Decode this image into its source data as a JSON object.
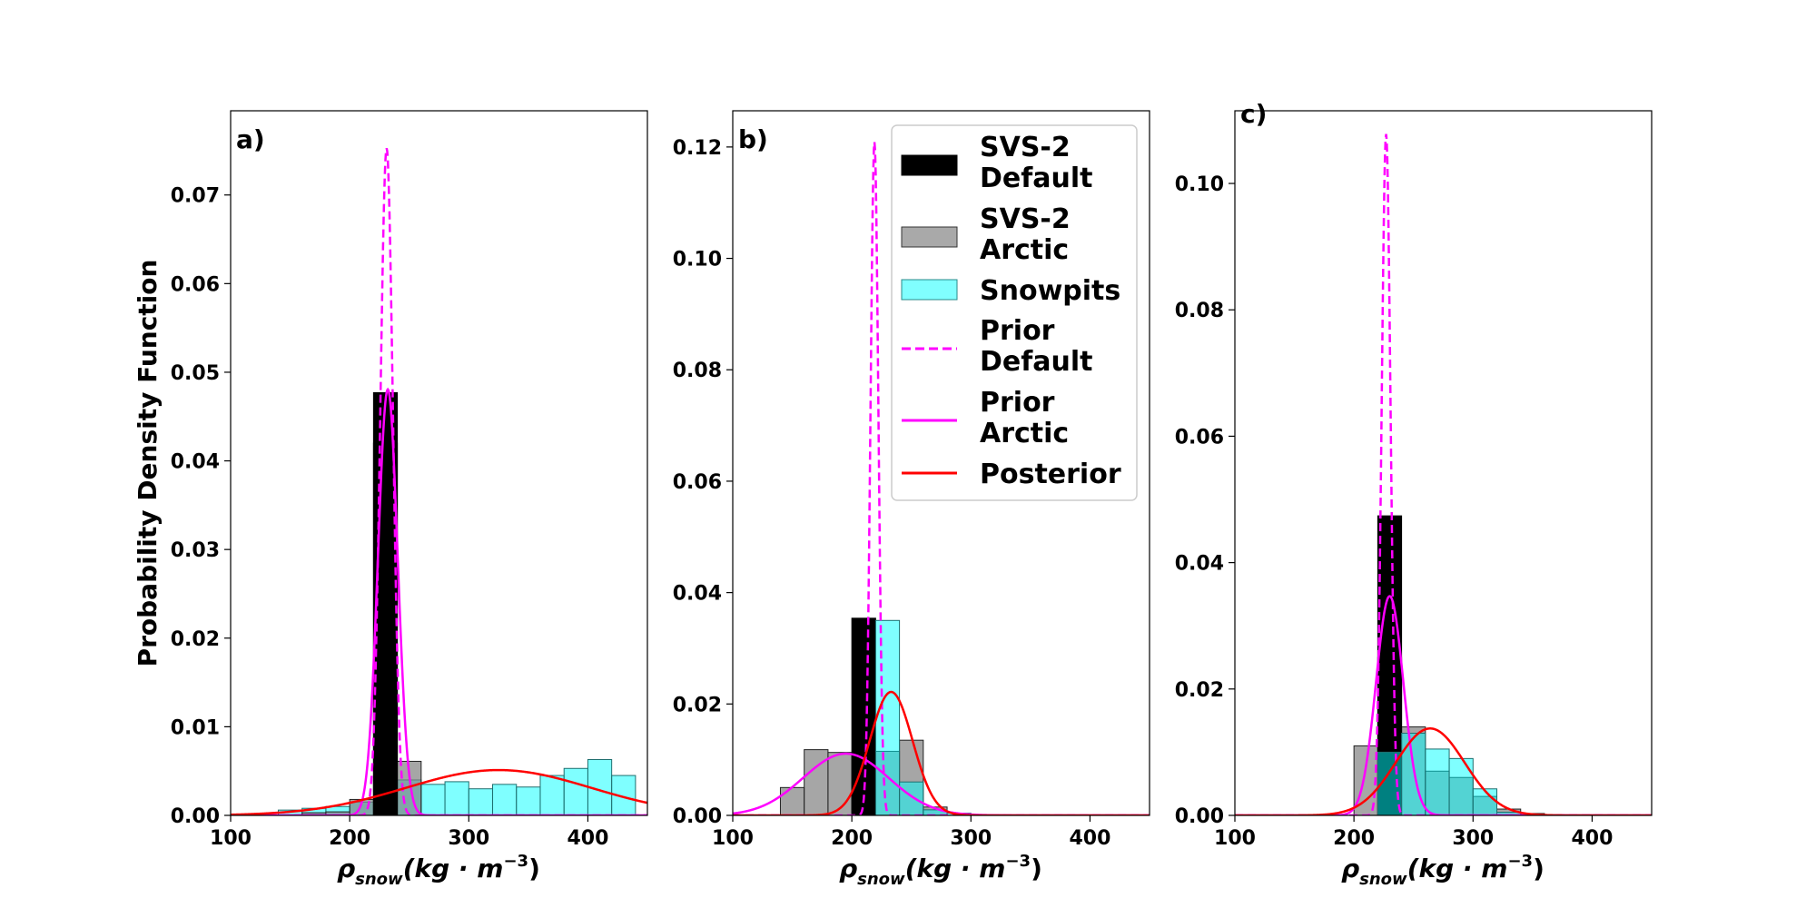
{
  "figure": {
    "ylabel": "Probability Density Function",
    "xlabel_main": "ρ",
    "xlabel_sub": "snow",
    "xlabel_units": "(kg · m",
    "xlabel_exp": "−3",
    "xlabel_close": ")"
  },
  "legend": {
    "location": "upper-right of panel b",
    "entries": [
      {
        "label_line1": "SVS-2",
        "label_line2": "Default",
        "kind": "patch",
        "fill": "#000000",
        "edge": "#000000"
      },
      {
        "label_line1": "SVS-2",
        "label_line2": "Arctic",
        "kind": "patch",
        "fill": "#a9a9a9",
        "edge": "#333333"
      },
      {
        "label_line1": "Snowpits",
        "label_line2": "",
        "kind": "patch",
        "fill": "#80ffff",
        "edge": "#2a8a8a"
      },
      {
        "label_line1": "Prior",
        "label_line2": "Default",
        "kind": "dashed",
        "color": "#ff00ff"
      },
      {
        "label_line1": "Prior",
        "label_line2": "Arctic",
        "kind": "solid",
        "color": "#ff00ff"
      },
      {
        "label_line1": "Posterior",
        "label_line2": "",
        "kind": "solid",
        "color": "#ff0000"
      }
    ]
  },
  "colors": {
    "svs_default": "#000000",
    "svs_arctic": "#808080",
    "snowpits": "#00ffff",
    "prior_default": "#ff00ff",
    "prior_arctic": "#ff00ff",
    "posterior": "#ff0000"
  },
  "chart_data": [
    {
      "type": "histogram",
      "panel": "a)",
      "xlim": [
        100,
        450
      ],
      "ylim": [
        0,
        0.0795
      ],
      "xticks": [
        100,
        200,
        300,
        400
      ],
      "yticks": [
        0.0,
        0.01,
        0.02,
        0.03,
        0.04,
        0.05,
        0.06,
        0.07
      ],
      "ytick_decimals": 2,
      "histograms": [
        {
          "name": "Snowpits",
          "bins": [
            [
              140,
              160,
              0.0006
            ],
            [
              160,
              180,
              0.0008
            ],
            [
              180,
              200,
              0.001
            ],
            [
              200,
              220,
              0.0015
            ],
            [
              220,
              240,
              0.004
            ],
            [
              240,
              260,
              0.004
            ],
            [
              260,
              280,
              0.0035
            ],
            [
              280,
              300,
              0.0038
            ],
            [
              300,
              320,
              0.003
            ],
            [
              320,
              340,
              0.0035
            ],
            [
              340,
              360,
              0.0032
            ],
            [
              360,
              380,
              0.0045
            ],
            [
              380,
              400,
              0.0053
            ],
            [
              400,
              420,
              0.0063
            ],
            [
              420,
              440,
              0.0045
            ]
          ]
        },
        {
          "name": "SVS-2 Arctic",
          "bins": [
            [
              160,
              180,
              0.0003
            ],
            [
              180,
              200,
              0.0004
            ],
            [
              200,
              220,
              0.0018
            ],
            [
              220,
              240,
              0.042
            ],
            [
              240,
              260,
              0.0061
            ]
          ]
        },
        {
          "name": "SVS-2 Default",
          "bins": [
            [
              220,
              240,
              0.0477
            ]
          ]
        }
      ],
      "curves": [
        {
          "name": "Prior Default",
          "dist": "normal",
          "mean": 231,
          "sd": 5.3
        },
        {
          "name": "Prior Arctic",
          "dist": "normal",
          "mean": 232,
          "sd": 8.3
        },
        {
          "name": "Posterior",
          "dist": "normal",
          "mean": 325,
          "sd": 78
        }
      ]
    },
    {
      "type": "histogram",
      "panel": "b)",
      "xlim": [
        100,
        450
      ],
      "ylim": [
        0,
        0.1265
      ],
      "xticks": [
        100,
        200,
        300,
        400
      ],
      "yticks": [
        0.0,
        0.02,
        0.04,
        0.06,
        0.08,
        0.1,
        0.12
      ],
      "ytick_decimals": 2,
      "histograms": [
        {
          "name": "SVS-2 Arctic",
          "bins": [
            [
              140,
              160,
              0.005
            ],
            [
              160,
              180,
              0.0118
            ],
            [
              180,
              200,
              0.0113
            ],
            [
              200,
              220,
              0.006
            ],
            [
              220,
              240,
              0.0115
            ],
            [
              240,
              260,
              0.0135
            ],
            [
              260,
              280,
              0.0015
            ]
          ]
        },
        {
          "name": "SVS-2 Default",
          "bins": [
            [
              200,
              220,
              0.0354
            ]
          ]
        },
        {
          "name": "Snowpits",
          "bins": [
            [
              220,
              240,
              0.035
            ],
            [
              240,
              260,
              0.006
            ],
            [
              260,
              280,
              0.001
            ],
            [
              280,
              300,
              0.0004
            ]
          ]
        }
      ],
      "curves": [
        {
          "name": "Prior Default",
          "dist": "normal",
          "mean": 219,
          "sd": 3.3
        },
        {
          "name": "Prior Arctic",
          "dist": "normal",
          "mean": 195,
          "sd": 36
        },
        {
          "name": "Posterior",
          "dist": "normal",
          "mean": 233,
          "sd": 18
        }
      ]
    },
    {
      "type": "histogram",
      "panel": "c)",
      "xlim": [
        100,
        450
      ],
      "ylim": [
        0,
        0.1115
      ],
      "xticks": [
        100,
        200,
        300,
        400
      ],
      "yticks": [
        0.0,
        0.02,
        0.04,
        0.06,
        0.08,
        0.1
      ],
      "ytick_decimals": 2,
      "histograms": [
        {
          "name": "SVS-2 Arctic",
          "bins": [
            [
              200,
              220,
              0.011
            ],
            [
              220,
              240,
              0.025
            ],
            [
              240,
              260,
              0.014
            ],
            [
              260,
              280,
              0.007
            ],
            [
              280,
              300,
              0.006
            ],
            [
              300,
              320,
              0.003
            ],
            [
              320,
              340,
              0.001
            ],
            [
              340,
              360,
              0.0003
            ]
          ]
        },
        {
          "name": "SVS-2 Default",
          "bins": [
            [
              220,
              240,
              0.0474
            ]
          ]
        },
        {
          "name": "Snowpits",
          "bins": [
            [
              220,
              240,
              0.01
            ],
            [
              240,
              260,
              0.013
            ],
            [
              260,
              280,
              0.0105
            ],
            [
              280,
              300,
              0.009
            ],
            [
              300,
              320,
              0.0042
            ],
            [
              320,
              340,
              0.0005
            ]
          ]
        }
      ],
      "curves": [
        {
          "name": "Prior Default",
          "dist": "normal",
          "mean": 227,
          "sd": 3.7
        },
        {
          "name": "Prior Arctic",
          "dist": "normal",
          "mean": 230,
          "sd": 11.5
        },
        {
          "name": "Posterior",
          "dist": "normal",
          "mean": 264,
          "sd": 29
        }
      ]
    }
  ]
}
